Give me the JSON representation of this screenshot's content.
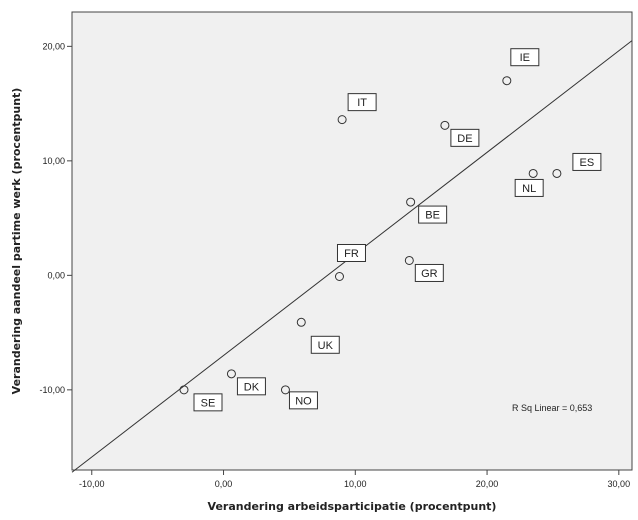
{
  "chart_data": {
    "type": "scatter",
    "xlabel": "Verandering arbeidsparticipatie (procentpunt)",
    "ylabel": "Verandering aandeel partime werk (procentpunt)",
    "xlim": [
      -11.5,
      31
    ],
    "ylim": [
      -17,
      23
    ],
    "x_ticks": [
      -10,
      0,
      10,
      20,
      30
    ],
    "y_ticks": [
      -10,
      0,
      10,
      20
    ],
    "x_tick_labels": [
      "-10,00",
      "0,00",
      "10,00",
      "20,00",
      "30,00"
    ],
    "y_tick_labels": [
      "-10,00",
      "0,00",
      "10,00",
      "20,00"
    ],
    "grid": false,
    "plot_background": "#f0f0f0",
    "points": [
      {
        "label": "IE",
        "x": 21.5,
        "y": 17.0
      },
      {
        "label": "IT",
        "x": 9.0,
        "y": 13.6
      },
      {
        "label": "DE",
        "x": 16.8,
        "y": 13.1
      },
      {
        "label": "ES",
        "x": 25.3,
        "y": 8.9
      },
      {
        "label": "NL",
        "x": 23.5,
        "y": 8.9
      },
      {
        "label": "BE",
        "x": 14.2,
        "y": 6.4
      },
      {
        "label": "FR",
        "x": 8.8,
        "y": -0.1
      },
      {
        "label": "GR",
        "x": 14.1,
        "y": 1.3
      },
      {
        "label": "UK",
        "x": 5.9,
        "y": -4.1
      },
      {
        "label": "DK",
        "x": 0.6,
        "y": -8.6
      },
      {
        "label": "SE",
        "x": -3.0,
        "y": -10.0
      },
      {
        "label": "NO",
        "x": 4.7,
        "y": -10.0
      }
    ],
    "fit_line": {
      "x": [
        -11.5,
        31
      ],
      "y": [
        -17.2,
        20.5
      ]
    },
    "annotation": "R Sq Linear = 0,653"
  }
}
